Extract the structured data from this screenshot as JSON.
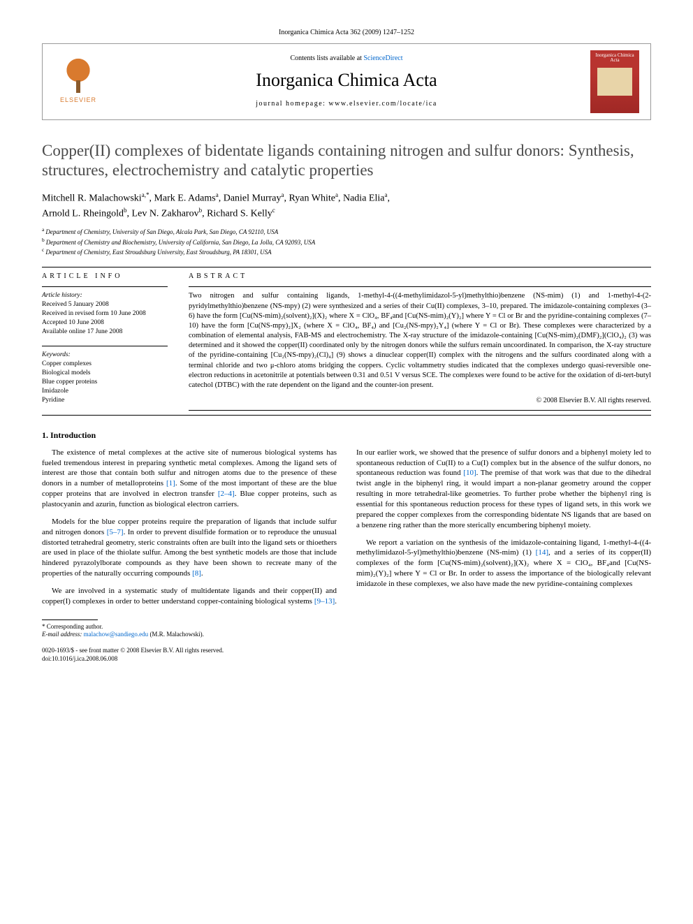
{
  "journal_ref": "Inorganica Chimica Acta 362 (2009) 1247–1252",
  "header": {
    "publisher": "ELSEVIER",
    "contents_prefix": "Contents lists available at ",
    "contents_link": "ScienceDirect",
    "journal_name": "Inorganica Chimica Acta",
    "homepage_prefix": "journal homepage: ",
    "homepage_url": "www.elsevier.com/locate/ica",
    "cover_title": "Inorganica Chimica Acta"
  },
  "title": "Copper(II) complexes of bidentate ligands containing nitrogen and sulfur donors: Synthesis, structures, electrochemistry and catalytic properties",
  "authors_line1": "Mitchell R. Malachowski",
  "authors_sup1": "a,*",
  "authors_seg2": ", Mark E. Adams",
  "authors_sup2": "a",
  "authors_seg3": ", Daniel Murray",
  "authors_sup3": "a",
  "authors_seg4": ", Ryan White",
  "authors_sup4": "a",
  "authors_seg5": ", Nadia Elia",
  "authors_sup5": "a",
  "authors_seg6_prefix": ",",
  "authors_line2_1": "Arnold L. Rheingold",
  "authors_sup6": "b",
  "authors_seg7": ", Lev N. Zakharov",
  "authors_sup7": "b",
  "authors_seg8": ", Richard S. Kelly",
  "authors_sup8": "c",
  "affiliations": {
    "a": "Department of Chemistry, University of San Diego, Alcala Park, San Diego, CA 92110, USA",
    "b": "Department of Chemistry and Biochemistry, University of California, San Diego, La Jolla, CA 92093, USA",
    "c": "Department of Chemistry, East Stroudsburg University, East Stroudsburg, PA 18301, USA"
  },
  "article_info_heading": "ARTICLE INFO",
  "abstract_heading": "ABSTRACT",
  "history_label": "Article history:",
  "history": {
    "received": "Received 5 January 2008",
    "revised": "Received in revised form 10 June 2008",
    "accepted": "Accepted 10 June 2008",
    "online": "Available online 17 June 2008"
  },
  "keywords_label": "Keywords:",
  "keywords": [
    "Copper complexes",
    "Biological models",
    "Blue copper proteins",
    "Imidazole",
    "Pyridine"
  ],
  "abstract_text": "Two nitrogen and sulfur containing ligands, 1-methyl-4-((4-methylimidazol-5-yl)methylthio)benzene (NS-mim) (1) and 1-methyl-4-(2-pyridylmethylthio)benzene (NS-mpy) (2) were synthesized and a series of their Cu(II) complexes, 3–10, prepared. The imidazole-containing complexes (3–6) have the form [Cu(NS-mim)₂(solvent)₂](X)₂ where X = ClO₄, BF₄and [Cu(NS-mim)₂(Y)₂] where Y = Cl or Br and the pyridine-containing complexes (7–10) have the form [Cu(NS-mpy)₂]X₂ (where X = ClO₄, BF₄) and [Cu₂(NS-mpy)₂Y₄] (where Y = Cl or Br). These complexes were characterized by a combination of elemental analysis, FAB-MS and electrochemistry. The X-ray structure of the imidazole-containing [Cu(NS-mim)₂(DMF)₂](ClO₄)₂ (3) was determined and it showed the copper(II) coordinated only by the nitrogen donors while the sulfurs remain uncoordinated. In comparison, the X-ray structure of the pyridine-containing [Cu₂(NS-mpy)₂(Cl)₄] (9) shows a dinuclear copper(II) complex with the nitrogens and the sulfurs coordinated along with a terminal chloride and two μ-chloro atoms bridging the coppers. Cyclic voltammetry studies indicated that the complexes undergo quasi-reversible one-electron reductions in acetonitrile at potentials between 0.31 and 0.51 V versus SCE. The complexes were found to be active for the oxidation of di-tert-butyl catechol (DTBC) with the rate dependent on the ligand and the counter-ion present.",
  "copyright": "© 2008 Elsevier B.V. All rights reserved.",
  "section1_heading": "1. Introduction",
  "body": {
    "p1a": "The existence of metal complexes at the active site of numerous biological systems has fueled tremendous interest in preparing synthetic metal complexes. Among the ligand sets of interest are those that contain both sulfur and nitrogen atoms due to the presence of these donors in a number of metalloproteins ",
    "r1": "[1]",
    "p1b": ". Some of the most important of these are the blue copper proteins that are involved in electron transfer ",
    "r2": "[2–4]",
    "p1c": ". Blue copper proteins, such as plastocyanin and azurin, function as biological electron carriers.",
    "p2a": "Models for the blue copper proteins require the preparation of ligands that include sulfur and nitrogen donors ",
    "r3": "[5–7]",
    "p2b": ". In order to prevent disulfide formation or to reproduce the unusual distorted tetrahedral geometry, steric constraints often are built into the ligand sets or thioethers are used in place of the thiolate sulfur. Among the best synthetic models are those that include hindered pyrazolylborate compounds as they have been shown to recreate many of the properties of the naturally occurring compounds ",
    "r4": "[8]",
    "p2c": ".",
    "p3a": "We are involved in a systematic study of multidentate ligands and their copper(II) and copper(I) complexes in order to better understand copper-containing biological systems ",
    "r5": "[9–13]",
    "p3b": ". In our earlier work, we showed that the presence of sulfur donors and a biphenyl moiety led to spontaneous reduction of Cu(II) to a Cu(I) complex but in the absence of the sulfur donors, no spontaneous reduction was found ",
    "r6": "[10]",
    "p3c": ". The premise of that work was that due to the dihedral twist angle in the biphenyl ring, it would impart a non-planar geometry around the copper resulting in more tetrahedral-like geometries. To further probe whether the biphenyl ring is essential for this spontaneous reduction process for these types of ligand sets, in this work we prepared the copper complexes from the corresponding bidentate NS ligands that are based on a benzene ring rather than the more sterically encumbering biphenyl moiety.",
    "p4a": "We report a variation on the synthesis of the imidazole-containing ligand, 1-methyl-4-((4-methylimidazol-5-yl)methylthio)benzene (NS-mim) (1) ",
    "r7": "[14]",
    "p4b": ", and a series of its copper(II) complexes of the form [Cu(NS-mim)₂(solvent)₂](X)₂ where X = ClO₄, BF₄and [Cu(NS-mim)₂(Y)₂] where Y = Cl or Br. In order to assess the importance of the biologically relevant imidazole in these complexes, we also have made the new pyridine-containing complexes"
  },
  "footnote": {
    "corr": "* Corresponding author.",
    "email_label": "E-mail address: ",
    "email": "malachow@sandiego.edu",
    "email_suffix": " (M.R. Malachowski)."
  },
  "footer": {
    "line1": "0020-1693/$ - see front matter © 2008 Elsevier B.V. All rights reserved.",
    "line2": "doi:10.1016/j.ica.2008.06.008"
  },
  "colors": {
    "link": "#0066cc",
    "elsevier_orange": "#d97a2e",
    "cover_red": "#b8342f",
    "title_gray": "#4a4a4a"
  }
}
